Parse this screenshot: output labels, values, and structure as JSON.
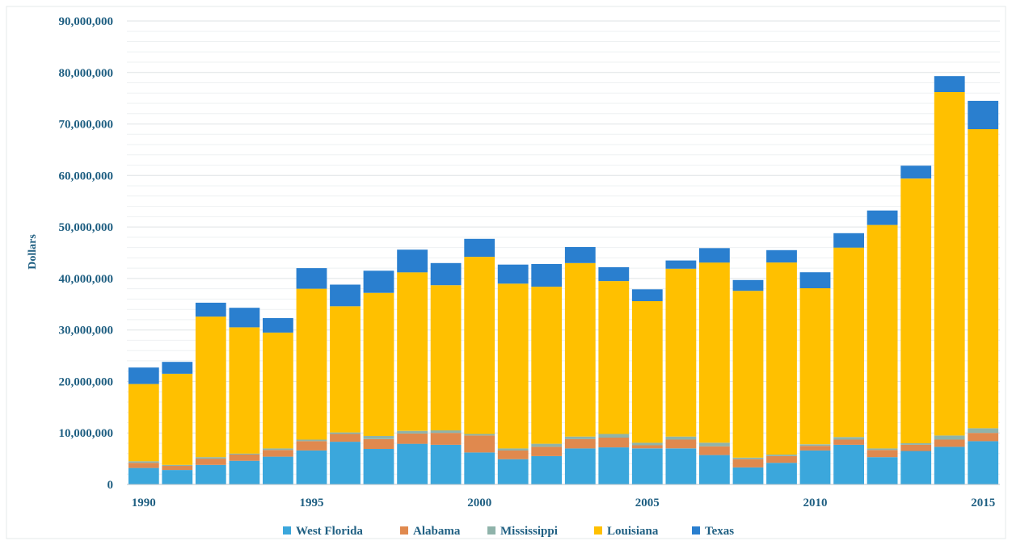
{
  "chart_data": {
    "type": "bar",
    "stacked": true,
    "title": "",
    "xlabel": "",
    "ylabel": "Dollars",
    "ylim": [
      0,
      90000000
    ],
    "y_ticks": [
      0,
      10000000,
      20000000,
      30000000,
      40000000,
      50000000,
      60000000,
      70000000,
      80000000,
      90000000
    ],
    "y_tick_labels": [
      "0",
      "10,000,000",
      "20,000,000",
      "30,000,000",
      "40,000,000",
      "50,000,000",
      "60,000,000",
      "70,000,000",
      "80,000,000",
      "90,000,000"
    ],
    "x_tick_labels": [
      "1990",
      "1995",
      "2000",
      "2005",
      "2010",
      "2015"
    ],
    "categories": [
      "1990",
      "1991",
      "1992",
      "1993",
      "1994",
      "1995",
      "1996",
      "1997",
      "1998",
      "1999",
      "2000",
      "2001",
      "2002",
      "2003",
      "2004",
      "2005",
      "2006",
      "2007",
      "2008",
      "2009",
      "2010",
      "2011",
      "2012",
      "2013",
      "2014",
      "2015"
    ],
    "series": [
      {
        "name": "West Florida",
        "color": "#3ba7dc",
        "values": [
          3200000,
          2800000,
          3800000,
          4600000,
          5400000,
          6600000,
          8300000,
          6900000,
          7900000,
          7700000,
          6200000,
          4900000,
          5500000,
          7000000,
          7200000,
          7000000,
          7000000,
          5700000,
          3300000,
          4200000,
          6600000,
          7700000,
          5300000,
          6500000,
          7300000,
          8400000
        ]
      },
      {
        "name": "Alabama",
        "color": "#e0894e",
        "values": [
          1000000,
          800000,
          1200000,
          1200000,
          1300000,
          1800000,
          1500000,
          1900000,
          2000000,
          2300000,
          3300000,
          1700000,
          1800000,
          1800000,
          1900000,
          600000,
          1700000,
          1700000,
          1600000,
          1300000,
          900000,
          1000000,
          1400000,
          1200000,
          1400000,
          1600000
        ]
      },
      {
        "name": "Mississippi",
        "color": "#8fb3aa",
        "values": [
          300000,
          200000,
          300000,
          200000,
          300000,
          300000,
          300000,
          600000,
          500000,
          500000,
          300000,
          400000,
          600000,
          500000,
          700000,
          500000,
          600000,
          700000,
          300000,
          300000,
          300000,
          500000,
          300000,
          300000,
          800000,
          900000
        ]
      },
      {
        "name": "Louisiana",
        "color": "#ffc000",
        "values": [
          15000000,
          17700000,
          27300000,
          24500000,
          22500000,
          29300000,
          24500000,
          27800000,
          30800000,
          28200000,
          34400000,
          32000000,
          30500000,
          33700000,
          29700000,
          27500000,
          32600000,
          35000000,
          32400000,
          37300000,
          30300000,
          36800000,
          43400000,
          51400000,
          66700000,
          58100000
        ]
      },
      {
        "name": "Texas",
        "color": "#2a7fcf",
        "values": [
          3200000,
          2300000,
          2700000,
          3800000,
          2800000,
          4000000,
          4200000,
          4300000,
          4400000,
          4300000,
          3500000,
          3700000,
          4400000,
          3100000,
          2700000,
          2300000,
          1600000,
          2800000,
          2100000,
          2400000,
          3100000,
          2800000,
          2800000,
          2500000,
          3100000,
          5500000
        ]
      }
    ],
    "grid": true,
    "legend_placement": "bottom"
  }
}
